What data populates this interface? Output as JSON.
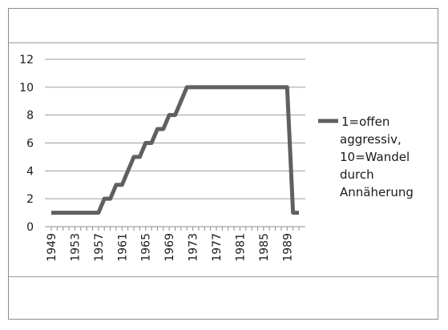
{
  "chart_data": {
    "type": "line",
    "title": "",
    "xlabel": "",
    "ylabel": "",
    "ylim": [
      0,
      12
    ],
    "y_ticks": [
      0,
      2,
      4,
      6,
      8,
      10,
      12
    ],
    "x_tick_labels": [
      "1949",
      "1953",
      "1957",
      "1961",
      "1965",
      "1969",
      "1973",
      "1977",
      "1981",
      "1985",
      "1989"
    ],
    "grid": true,
    "legend_position": "right",
    "series": [
      {
        "name": "1=offen aggressiv, 10=Wandel durch Annäherung",
        "color": "#606060",
        "x": [
          1949,
          1950,
          1951,
          1952,
          1953,
          1954,
          1955,
          1956,
          1957,
          1958,
          1959,
          1960,
          1961,
          1962,
          1963,
          1964,
          1965,
          1966,
          1967,
          1968,
          1969,
          1970,
          1971,
          1972,
          1973,
          1974,
          1975,
          1976,
          1977,
          1978,
          1979,
          1980,
          1981,
          1982,
          1983,
          1984,
          1985,
          1986,
          1987,
          1988,
          1989,
          1990,
          1991
        ],
        "values": [
          1,
          1,
          1,
          1,
          1,
          1,
          1,
          1,
          1,
          2,
          2,
          3,
          3,
          4,
          5,
          5,
          6,
          6,
          7,
          7,
          8,
          8,
          9,
          10,
          10,
          10,
          10,
          10,
          10,
          10,
          10,
          10,
          10,
          10,
          10,
          10,
          10,
          10,
          10,
          10,
          10,
          1,
          1
        ]
      }
    ]
  }
}
